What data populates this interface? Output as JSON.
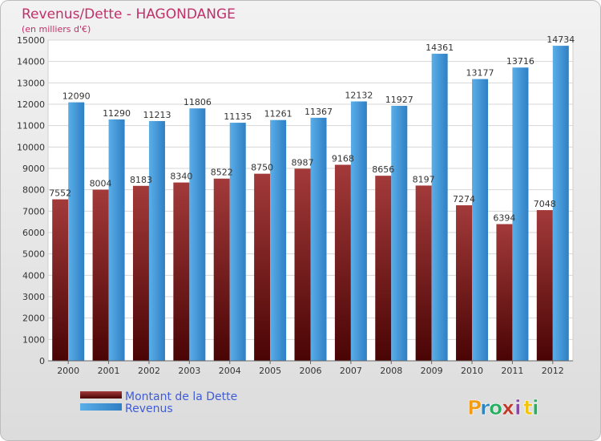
{
  "chart_data": {
    "type": "bar",
    "title": "Revenus/Dette - HAGONDANGE",
    "subtitle": "(en milliers d'€)",
    "xlabel": "",
    "ylabel": "",
    "ylim": [
      0,
      15000
    ],
    "yticks": [
      0,
      1000,
      2000,
      3000,
      4000,
      5000,
      6000,
      7000,
      8000,
      9000,
      10000,
      11000,
      12000,
      13000,
      14000,
      15000
    ],
    "grid": true,
    "legend_position": "bottom-left",
    "categories": [
      "2000",
      "2001",
      "2002",
      "2003",
      "2004",
      "2005",
      "2006",
      "2007",
      "2008",
      "2009",
      "2010",
      "2011",
      "2012"
    ],
    "series": [
      {
        "name": "Montant de la Dette",
        "color": "#8b1a1a",
        "values": [
          7552,
          8004,
          8183,
          8340,
          8522,
          8750,
          8987,
          9168,
          8656,
          8197,
          7274,
          6394,
          7048
        ]
      },
      {
        "name": "Revenus",
        "color": "#3d95d8",
        "values": [
          12090,
          11290,
          11213,
          11806,
          11135,
          11261,
          11367,
          12132,
          11927,
          14361,
          13177,
          13716,
          14734
        ]
      }
    ]
  },
  "brand": {
    "letters": [
      "P",
      "r",
      "o",
      "x",
      "i",
      "t",
      "i"
    ],
    "colors": [
      "#f39c12",
      "#2e86c1",
      "#27ae60",
      "#c0392b",
      "#8e44ad",
      "#f1c40f",
      "#27ae60"
    ]
  }
}
